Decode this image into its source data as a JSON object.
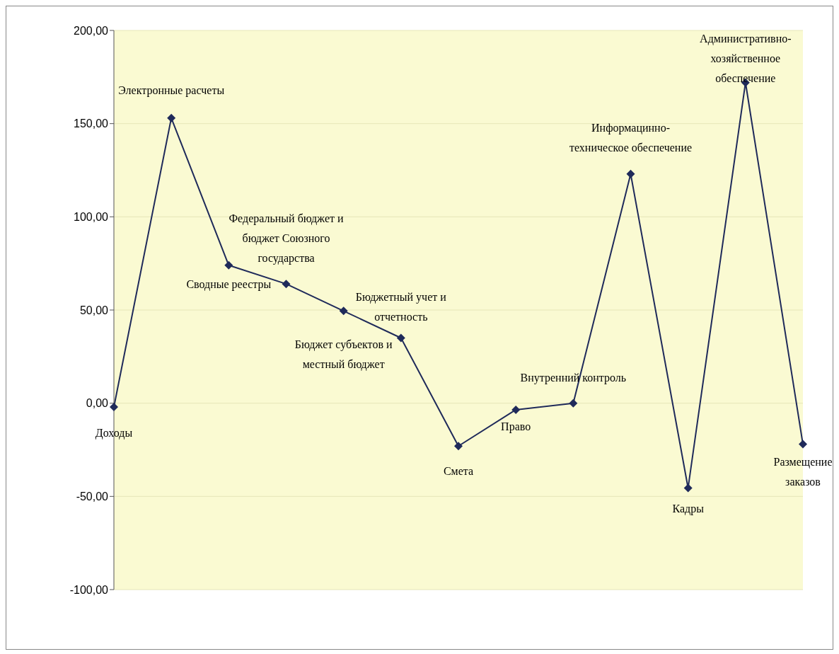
{
  "chart_data": {
    "type": "line",
    "categories": [
      "Доходы",
      "Электронные расчеты",
      "Сводные реестры",
      "Федеральный бюджет и бюджет Союзного государства",
      "Бюджет субъектов и местный бюджет",
      "Бюджетный учет и отчетность",
      "Смета",
      "Право",
      "Внутренний контроль",
      "Информацинно-техническое обеспечение",
      "Кадры",
      "Административно-хозяйственное обеспечение",
      "Размещение заказов"
    ],
    "series": [
      {
        "color": "#1f2a5a",
        "values": [
          -2,
          153,
          74,
          64,
          49.5,
          35,
          -23,
          -3.5,
          0,
          123,
          -45.5,
          172,
          -22
        ]
      }
    ],
    "ylim": [
      -100,
      200
    ],
    "yticks": [
      {
        "value": -100,
        "label": "-100,00"
      },
      {
        "value": -50,
        "label": "-50,00"
      },
      {
        "value": 0,
        "label": "0,00"
      },
      {
        "value": 50,
        "label": "50,00"
      },
      {
        "value": 100,
        "label": "100,00"
      },
      {
        "value": 150,
        "label": "150,00"
      },
      {
        "value": 200,
        "label": "200,00"
      }
    ],
    "grid": "y",
    "legend": false,
    "tick_labels": "y",
    "marker": "diamond",
    "line_style": "solid"
  }
}
